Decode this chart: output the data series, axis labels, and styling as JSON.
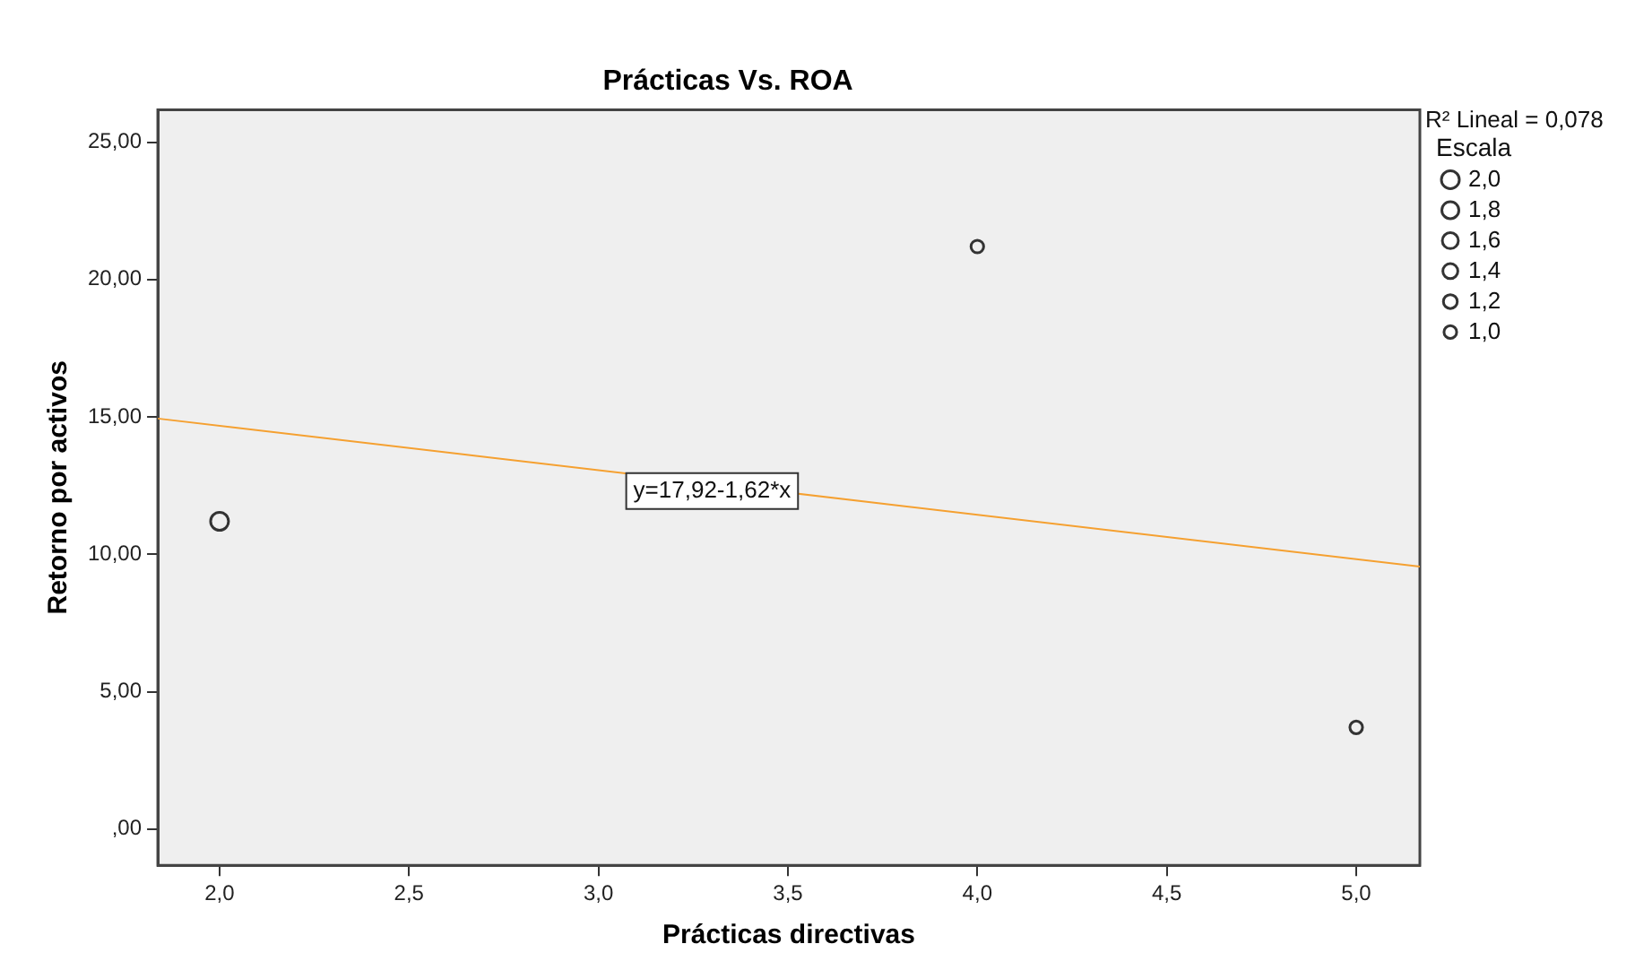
{
  "chart_data": {
    "type": "bubble",
    "title": "Prácticas Vs. ROA",
    "xlabel": "Prácticas directivas",
    "ylabel": "Retorno por activos",
    "legend_title": "Escala",
    "xlim": [
      1.837,
      5.168
    ],
    "ylim": [
      -1.32,
      26.18
    ],
    "xticks": [
      {
        "value": 2,
        "label": "2,0"
      },
      {
        "value": 2.5,
        "label": "2,5"
      },
      {
        "value": 3,
        "label": "3,0"
      },
      {
        "value": 3.5,
        "label": "3,5"
      },
      {
        "value": 4,
        "label": "4,0"
      },
      {
        "value": 4.5,
        "label": "4,5"
      },
      {
        "value": 5,
        "label": "5,0"
      }
    ],
    "yticks": [
      {
        "value": 0,
        "label": ",00"
      },
      {
        "value": 5,
        "label": "5,00"
      },
      {
        "value": 10,
        "label": "10,00"
      },
      {
        "value": 15,
        "label": "15,00"
      },
      {
        "value": 20,
        "label": "20,00"
      },
      {
        "value": 25,
        "label": "25,00"
      }
    ],
    "series": [
      {
        "color": "#333333",
        "marker": "circle",
        "x": [
          2,
          4,
          5
        ],
        "values": [
          11.2,
          21.2,
          3.7
        ],
        "sizes": [
          2.0,
          1.0,
          1.0
        ]
      },
      {
        "type": "line",
        "color": "#f5a030",
        "x": [
          1.837,
          5.168
        ],
        "values": [
          14.94,
          9.55
        ]
      }
    ],
    "size_legend": [
      {
        "value": 2.0,
        "label": "2,0"
      },
      {
        "value": 1.8,
        "label": "1,8"
      },
      {
        "value": 1.6,
        "label": "1,6"
      },
      {
        "value": 1.4,
        "label": "1,4"
      },
      {
        "value": 1.2,
        "label": "1,2"
      },
      {
        "value": 1.0,
        "label": "1,0"
      }
    ],
    "annotations": [
      "R² Lineal = 0,078",
      {
        "text": "y=17,92-1,62*x",
        "x": 3.3,
        "y": 12.3
      }
    ],
    "grid": false
  }
}
